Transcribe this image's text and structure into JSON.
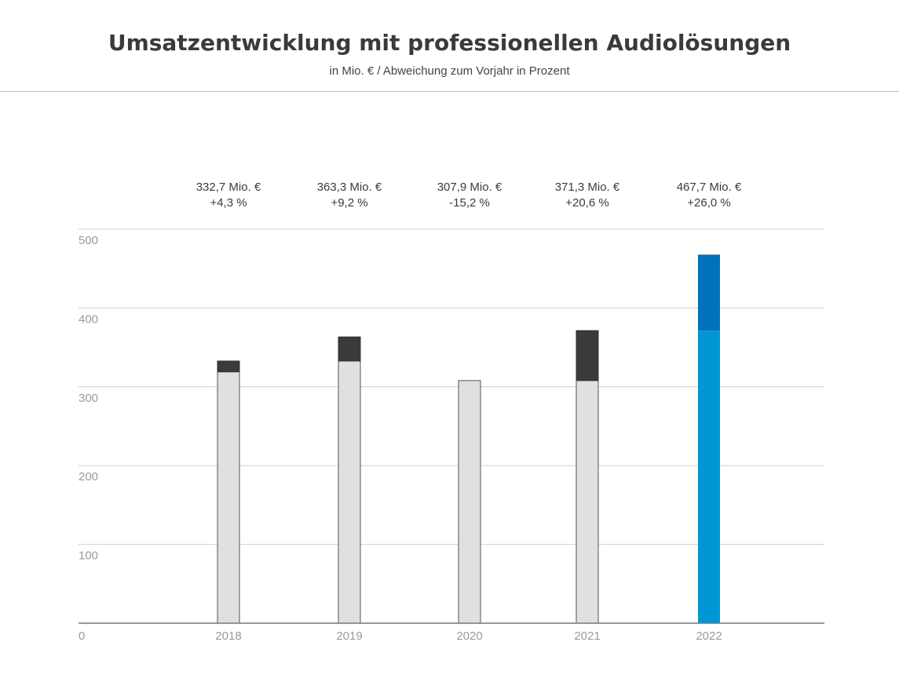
{
  "header": {
    "title": "Umsatzentwicklung mit professionellen Audiolösungen",
    "subtitle": "in Mio. € / Abweichung zum Vorjahr in Prozent"
  },
  "colors": {
    "base": "#e0e0e0",
    "increase": "#3a3a3a",
    "highlight_base": "#0096d6",
    "highlight_increase": "#0071bc",
    "grid": "#d0d0d0",
    "axis": "#777777",
    "tick_text": "#9a9a9a",
    "label_text": "#3c3c3c"
  },
  "chart_data": {
    "type": "bar",
    "title": "Umsatzentwicklung mit professionellen Audiolösungen",
    "subtitle": "in Mio. € / Abweichung zum Vorjahr in Prozent",
    "categories": [
      "2018",
      "2019",
      "2020",
      "2021",
      "2022"
    ],
    "values": [
      332.7,
      363.3,
      307.9,
      371.3,
      467.7
    ],
    "previous_year_values": [
      319.0,
      332.7,
      363.3,
      307.9,
      371.3
    ],
    "value_labels": [
      "332,7 Mio. €",
      "363,3 Mio. €",
      "307,9 Mio. €",
      "371,3 Mio. €",
      "467,7 Mio. €"
    ],
    "change_labels": [
      "+4,3 %",
      "+9,2 %",
      "-15,2 %",
      "+20,6 %",
      "+26,0 %"
    ],
    "highlight_category": "2022",
    "yticks": [
      "0",
      "100",
      "200",
      "300",
      "400",
      "500"
    ],
    "ylim": [
      0,
      500
    ],
    "grid": true,
    "legend": "none"
  }
}
